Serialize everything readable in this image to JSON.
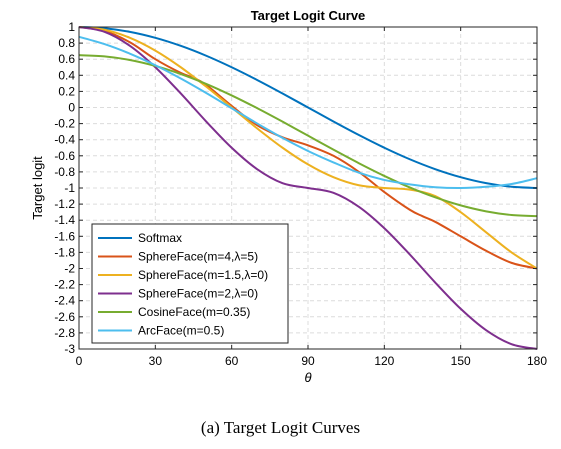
{
  "caption": "(a)  Target Logit Curves",
  "chart_data": {
    "type": "line",
    "title": "Target Logit Curve",
    "xlabel": "θ",
    "ylabel": "Target logit",
    "xlim": [
      0,
      180
    ],
    "ylim": [
      -3,
      1
    ],
    "xticks": [
      0,
      30,
      60,
      90,
      120,
      150,
      180
    ],
    "yticks": [
      -3,
      -2.8,
      -2.6,
      -2.4,
      -2.2,
      -2,
      -1.8,
      -1.6,
      -1.4,
      -1.2,
      -1,
      -0.8,
      -0.6,
      -0.4,
      -0.2,
      0,
      0.2,
      0.4,
      0.6,
      0.8,
      1
    ],
    "grid": true,
    "legend_position": "bottom-left",
    "series": [
      {
        "name": "Softmax",
        "color": "#0072BD",
        "x": [
          0,
          10,
          20,
          30,
          40,
          50,
          60,
          70,
          80,
          90,
          100,
          110,
          120,
          130,
          140,
          150,
          160,
          170,
          180
        ],
        "y": [
          1,
          0.985,
          0.94,
          0.866,
          0.766,
          0.643,
          0.5,
          0.342,
          0.174,
          0,
          -0.174,
          -0.342,
          -0.5,
          -0.643,
          -0.766,
          -0.866,
          -0.94,
          -0.985,
          -1
        ]
      },
      {
        "name": "SphereFace(m=4,λ=5)",
        "color": "#D95319",
        "x": [
          0,
          10,
          20,
          30,
          40,
          45,
          50,
          60,
          70,
          80,
          90,
          100,
          110,
          120,
          130,
          135,
          140,
          150,
          160,
          170,
          180
        ],
        "y": [
          1,
          0.95,
          0.81,
          0.6,
          0.43,
          0.37,
          0.28,
          0.02,
          -0.22,
          -0.37,
          -0.47,
          -0.6,
          -0.8,
          -1.05,
          -1.27,
          -1.35,
          -1.42,
          -1.6,
          -1.78,
          -1.93,
          -2
        ]
      },
      {
        "name": "SphereFace(m=1.5,λ=0)",
        "color": "#EDB120",
        "x": [
          0,
          10,
          20,
          30,
          40,
          50,
          60,
          70,
          80,
          90,
          100,
          110,
          120,
          130,
          140,
          150,
          160,
          170,
          180
        ],
        "y": [
          1,
          0.966,
          0.866,
          0.707,
          0.5,
          0.259,
          0,
          -0.259,
          -0.5,
          -0.707,
          -0.866,
          -0.966,
          -1,
          -1.02,
          -1.1,
          -1.3,
          -1.55,
          -1.8,
          -2
        ]
      },
      {
        "name": "SphereFace(m=2,λ=0)",
        "color": "#7E2F8E",
        "x": [
          0,
          10,
          20,
          30,
          40,
          50,
          60,
          70,
          80,
          90,
          100,
          110,
          120,
          130,
          140,
          150,
          160,
          170,
          180
        ],
        "y": [
          1,
          0.94,
          0.766,
          0.5,
          0.174,
          -0.174,
          -0.5,
          -0.766,
          -0.94,
          -1,
          -1.06,
          -1.234,
          -1.5,
          -1.826,
          -2.174,
          -2.5,
          -2.766,
          -2.94,
          -3
        ]
      },
      {
        "name": "CosineFace(m=0.35)",
        "color": "#77AC30",
        "x": [
          0,
          10,
          20,
          30,
          40,
          50,
          60,
          70,
          80,
          90,
          100,
          110,
          120,
          130,
          140,
          150,
          160,
          170,
          180
        ],
        "y": [
          0.65,
          0.635,
          0.59,
          0.516,
          0.416,
          0.293,
          0.15,
          -0.008,
          -0.176,
          -0.35,
          -0.524,
          -0.692,
          -0.85,
          -0.993,
          -1.116,
          -1.216,
          -1.29,
          -1.335,
          -1.35
        ]
      },
      {
        "name": "ArcFace(m=0.5)",
        "color": "#4DBEEE",
        "x": [
          0,
          10,
          20,
          30,
          40,
          50,
          60,
          70,
          80,
          90,
          100,
          110,
          120,
          130,
          140,
          150,
          160,
          170,
          180
        ],
        "y": [
          0.878,
          0.788,
          0.669,
          0.525,
          0.36,
          0.18,
          -0.009,
          -0.198,
          -0.378,
          -0.54,
          -0.682,
          -0.81,
          -0.9,
          -0.955,
          -0.99,
          -1,
          -0.985,
          -0.95,
          -0.878
        ]
      }
    ]
  }
}
